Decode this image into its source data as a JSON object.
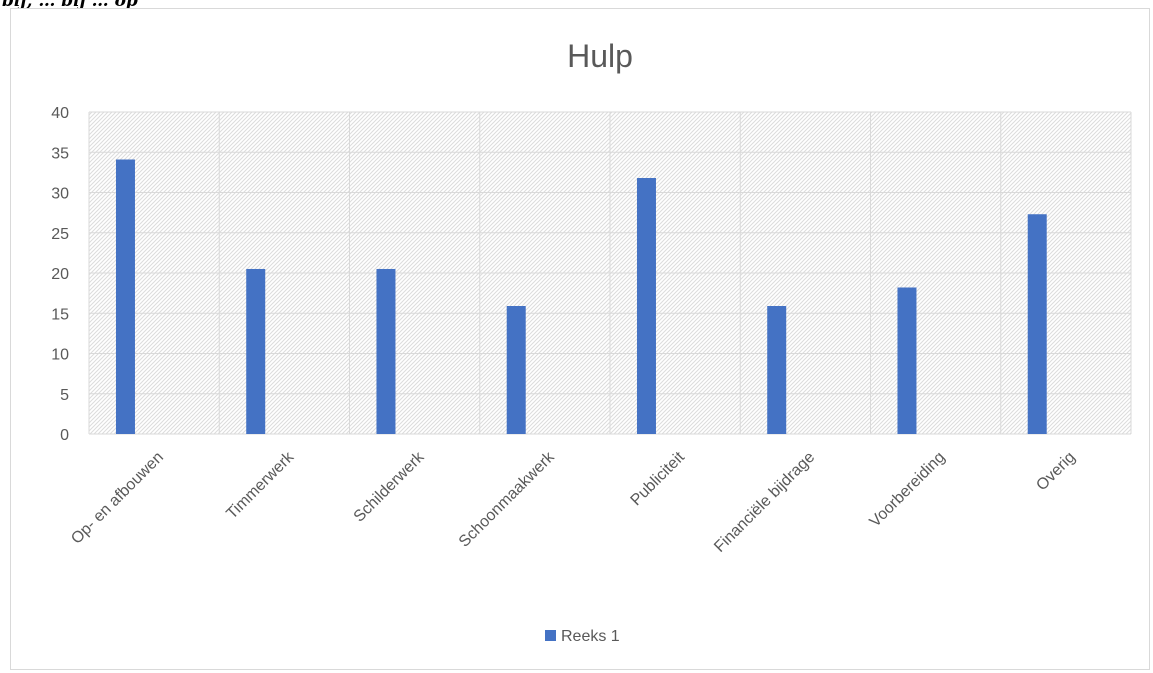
{
  "header_fragment": "bij, … bij … op",
  "chart_data": {
    "type": "bar",
    "title": "Hulp",
    "xlabel": "",
    "ylabel": "",
    "categories": [
      "Op- en afbouwen",
      "Timmerwerk",
      "Schilderwerk",
      "Schoonmaakwerk",
      "Publiciteit",
      "Financiële bijdrage",
      "Voorbereiding",
      "Overig"
    ],
    "series": [
      {
        "name": "Reeks 1",
        "values": [
          34.1,
          20.5,
          20.5,
          15.9,
          31.8,
          15.9,
          18.2,
          27.3
        ],
        "color": "#4472c4"
      }
    ],
    "ylim": [
      0,
      40
    ],
    "yticks": [
      0,
      5,
      10,
      15,
      20,
      25,
      30,
      35,
      40
    ],
    "grid": true,
    "plot_fill": "diagonal-hatch",
    "legend_position": "bottom"
  }
}
